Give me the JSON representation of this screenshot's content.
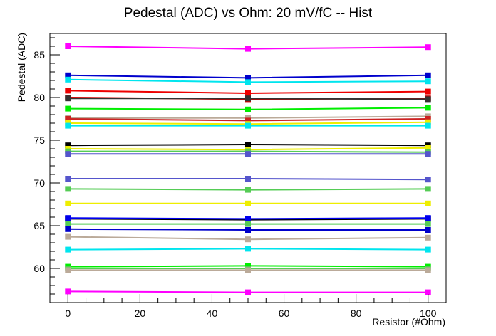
{
  "chart_data": {
    "type": "line",
    "title": "Pedestal (ADC) vs Ohm: 20 mV/fC -- Hist",
    "xlabel": "Resistor (#Ohm)",
    "ylabel": "Pedestal (ADC)",
    "xlim": [
      -5,
      105
    ],
    "ylim": [
      56,
      87.5
    ],
    "x_ticks": [
      0,
      20,
      40,
      60,
      80,
      100
    ],
    "y_ticks": [
      60,
      65,
      70,
      75,
      80,
      85
    ],
    "grid": false,
    "legend": "none",
    "x": [
      0,
      50,
      100
    ],
    "series": [
      {
        "color": "#ff00ff",
        "values": [
          86.0,
          85.7,
          85.9
        ]
      },
      {
        "color": "#0000cc",
        "values": [
          82.6,
          82.3,
          82.6
        ]
      },
      {
        "color": "#00e5ee",
        "values": [
          82.1,
          81.8,
          81.9
        ]
      },
      {
        "color": "#ee0000",
        "values": [
          80.8,
          80.5,
          80.7
        ]
      },
      {
        "color": "#cc0000",
        "values": [
          80.0,
          79.8,
          79.9
        ]
      },
      {
        "color": "#333333",
        "values": [
          79.9,
          79.9,
          79.8
        ]
      },
      {
        "color": "#00ee00",
        "values": [
          78.7,
          78.6,
          78.8
        ]
      },
      {
        "color": "#bbaa99",
        "values": [
          77.6,
          77.6,
          77.8
        ]
      },
      {
        "color": "#cc2222",
        "values": [
          77.5,
          77.3,
          77.5
        ]
      },
      {
        "color": "#eeee00",
        "values": [
          77.0,
          76.9,
          77.1
        ]
      },
      {
        "color": "#00e5ee",
        "values": [
          76.7,
          76.7,
          76.7
        ]
      },
      {
        "color": "#000000",
        "values": [
          74.4,
          74.5,
          74.4
        ]
      },
      {
        "color": "#eeee00",
        "values": [
          74.0,
          73.9,
          74.1
        ]
      },
      {
        "color": "#55cc55",
        "values": [
          73.7,
          73.7,
          73.6
        ]
      },
      {
        "color": "#5555cc",
        "values": [
          73.4,
          73.4,
          73.4
        ]
      },
      {
        "color": "#5555cc",
        "values": [
          70.5,
          70.5,
          70.4
        ]
      },
      {
        "color": "#55cc55",
        "values": [
          69.3,
          69.2,
          69.3
        ]
      },
      {
        "color": "#eeee00",
        "values": [
          67.6,
          67.6,
          67.6
        ]
      },
      {
        "color": "#000000",
        "values": [
          65.8,
          65.7,
          65.8
        ]
      },
      {
        "color": "#0000ee",
        "values": [
          65.9,
          65.8,
          65.9
        ]
      },
      {
        "color": "#55cc55",
        "values": [
          65.2,
          65.2,
          65.2
        ]
      },
      {
        "color": "#0000cc",
        "values": [
          64.6,
          64.5,
          64.5
        ]
      },
      {
        "color": "#bbaa99",
        "values": [
          63.7,
          63.4,
          63.6
        ]
      },
      {
        "color": "#00e5ee",
        "values": [
          62.2,
          62.3,
          62.2
        ]
      },
      {
        "color": "#00ee00",
        "values": [
          60.2,
          60.3,
          60.2
        ]
      },
      {
        "color": "#55cc55",
        "values": [
          60.0,
          60.0,
          60.0
        ]
      },
      {
        "color": "#bbaa99",
        "values": [
          59.8,
          59.8,
          59.8
        ]
      },
      {
        "color": "#ff00ff",
        "values": [
          57.3,
          57.2,
          57.2
        ]
      }
    ]
  }
}
